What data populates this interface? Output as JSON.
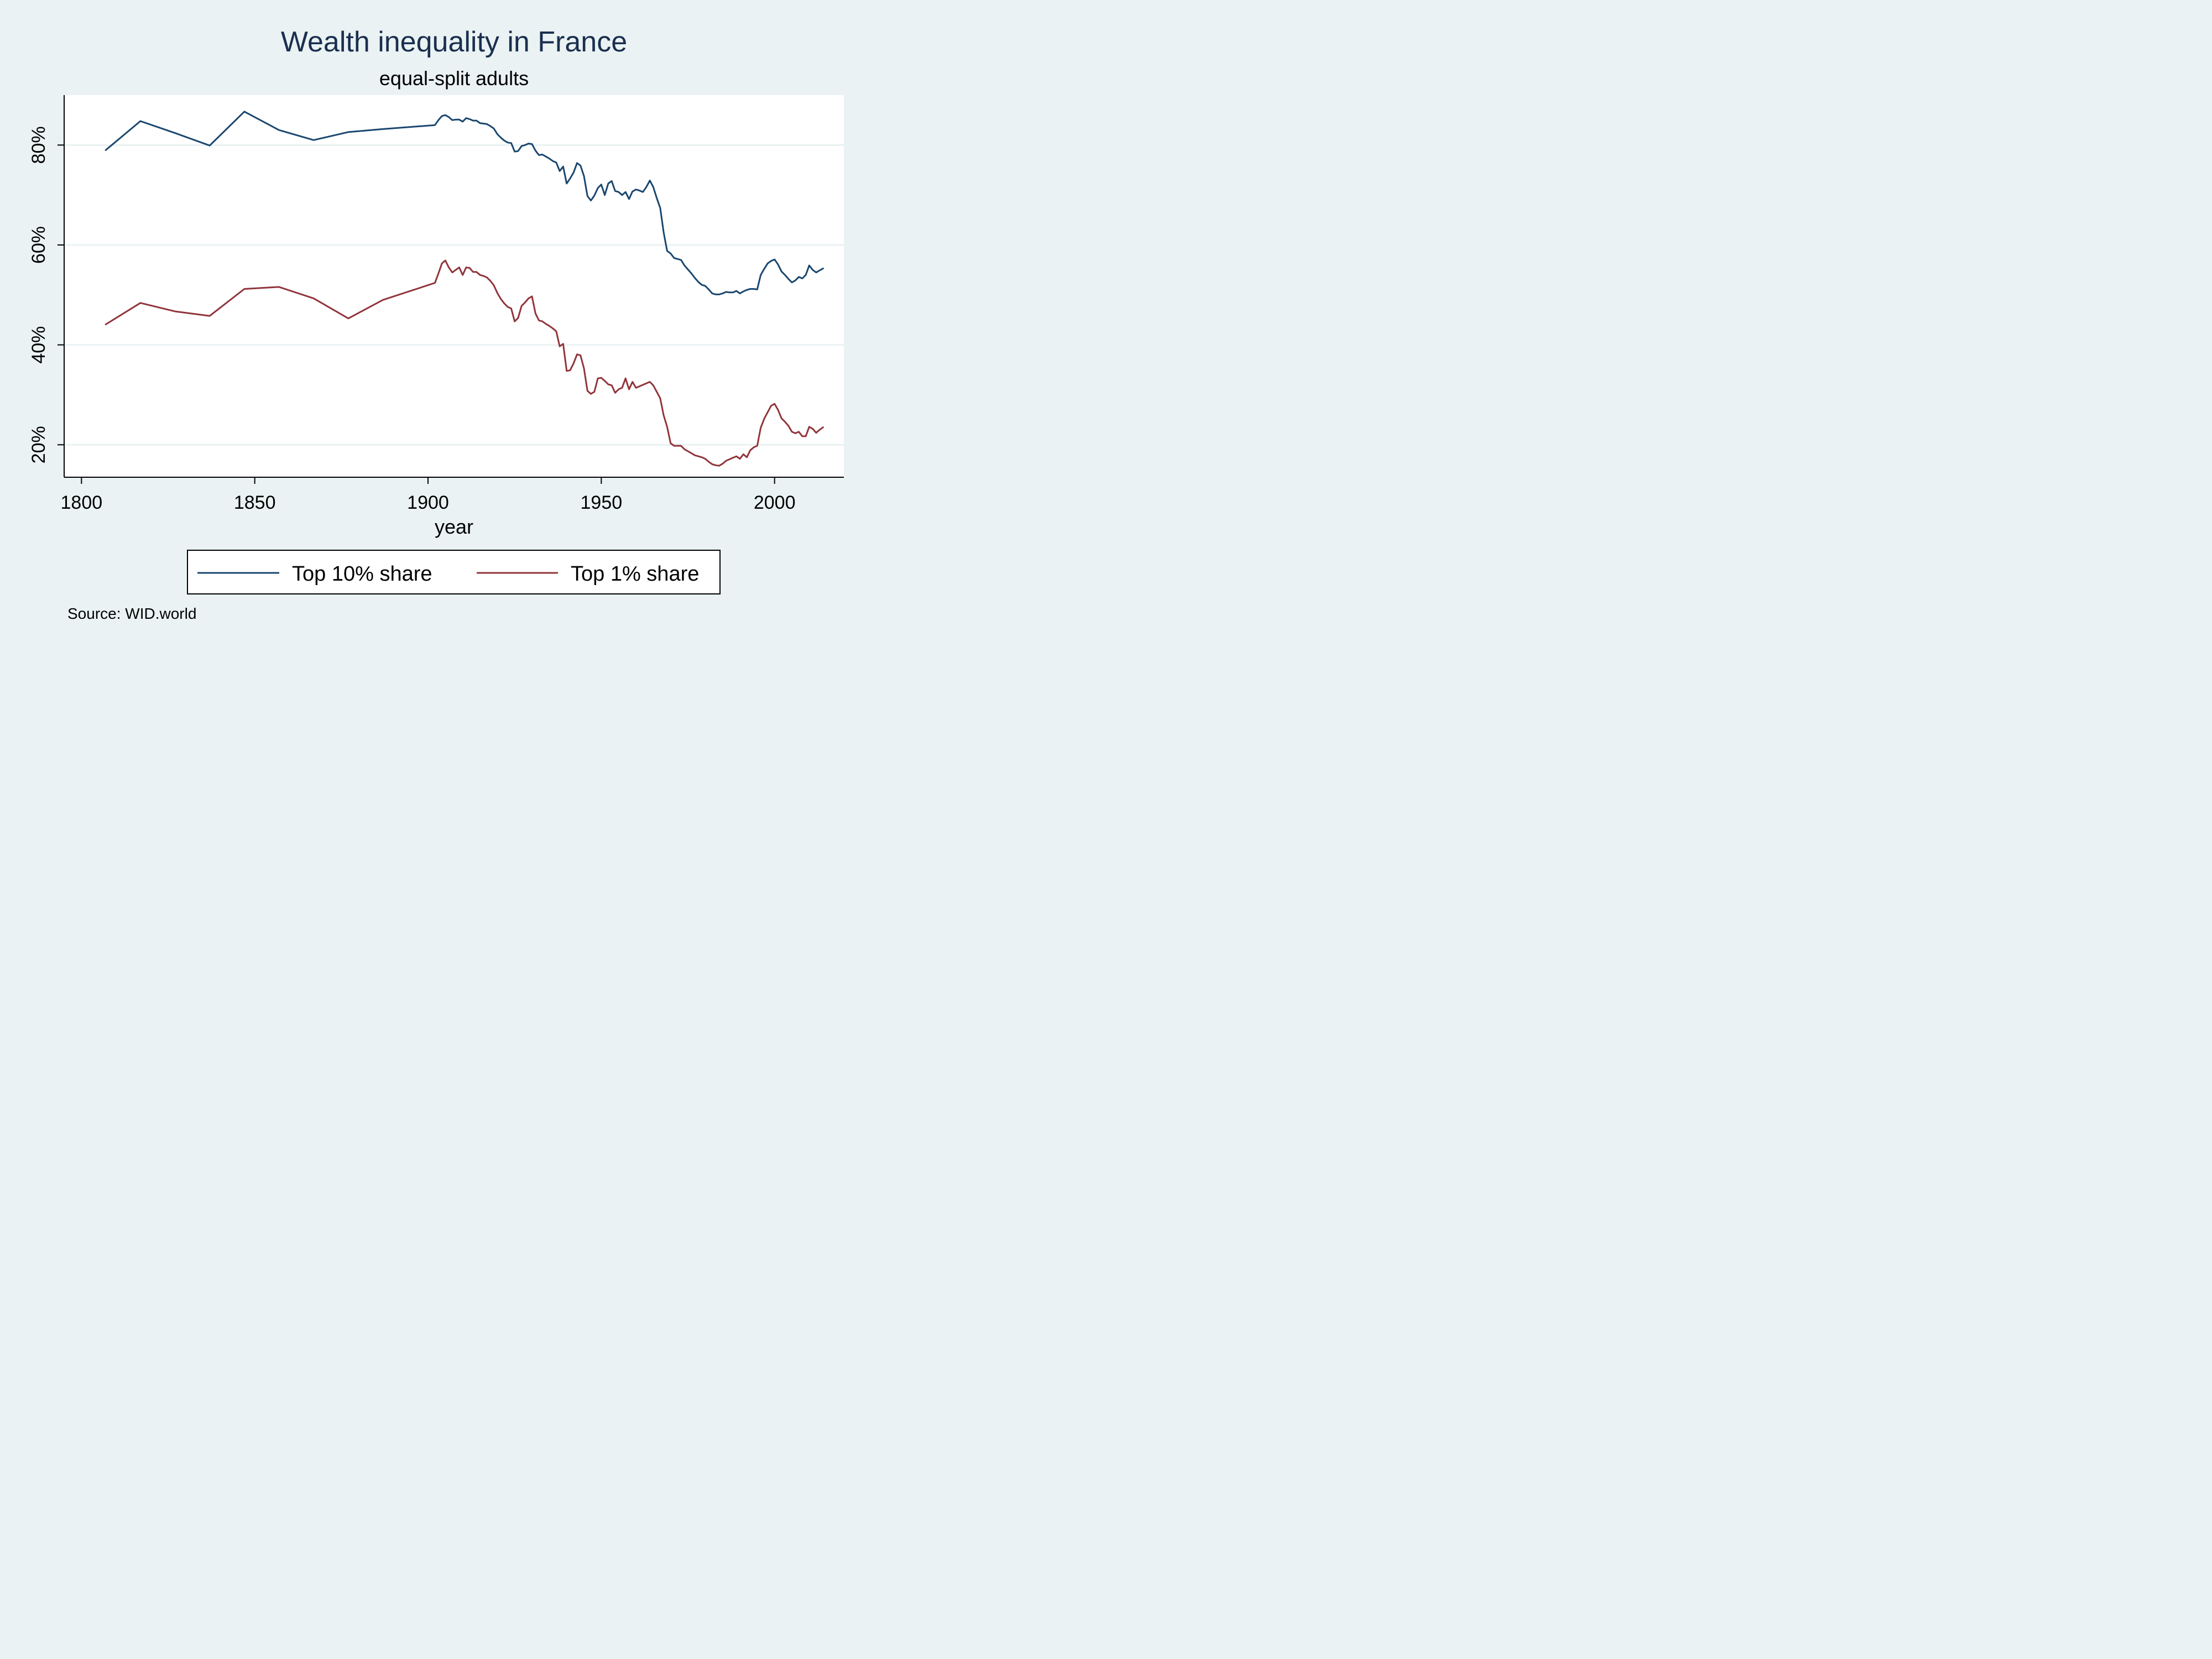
{
  "chart_data": {
    "type": "line",
    "title": "Wealth inequality in France",
    "subtitle": "equal-split adults",
    "xlabel": "year",
    "ylabel": "",
    "xlim": [
      1795,
      2020
    ],
    "ylim": [
      13.5,
      90
    ],
    "x_ticks": [
      1800,
      1850,
      1900,
      1950,
      2000
    ],
    "y_ticks": [
      20,
      40,
      60,
      80
    ],
    "y_tick_labels": [
      "20%",
      "40%",
      "60%",
      "80%"
    ],
    "grid": "horizontal",
    "legend_position": "bottom",
    "note": "Source: WID.world",
    "series": [
      {
        "name": "Top 10% share",
        "color": "#1a476f",
        "x": [
          1807,
          1817,
          1827,
          1837,
          1847,
          1857,
          1867,
          1877,
          1887,
          1902,
          1903,
          1904,
          1905,
          1906,
          1907,
          1908,
          1909,
          1910,
          1911,
          1912,
          1913,
          1914,
          1915,
          1916,
          1917,
          1918,
          1919,
          1920,
          1921,
          1922,
          1923,
          1924,
          1925,
          1926,
          1927,
          1928,
          1929,
          1930,
          1931,
          1932,
          1933,
          1934,
          1935,
          1936,
          1937,
          1938,
          1939,
          1940,
          1941,
          1942,
          1943,
          1944,
          1945,
          1946,
          1947,
          1948,
          1949,
          1950,
          1951,
          1952,
          1953,
          1954,
          1955,
          1956,
          1957,
          1958,
          1959,
          1960,
          1961,
          1962,
          1963,
          1964,
          1965,
          1966,
          1967,
          1968,
          1969,
          1970,
          1971,
          1972,
          1973,
          1974,
          1975,
          1976,
          1977,
          1978,
          1979,
          1980,
          1981,
          1982,
          1983,
          1984,
          1985,
          1986,
          1987,
          1988,
          1989,
          1990,
          1991,
          1992,
          1993,
          1994,
          1995,
          1996,
          1997,
          1998,
          1999,
          2000,
          2001,
          2002,
          2003,
          2004,
          2005,
          2006,
          2007,
          2008,
          2009,
          2010,
          2011,
          2012,
          2013,
          2014
        ],
        "values": [
          79.0,
          84.8,
          82.4,
          79.9,
          86.7,
          83.0,
          81.0,
          82.6,
          83.2,
          84.0,
          85.0,
          85.8,
          86.0,
          85.6,
          85.0,
          85.1,
          85.1,
          84.7,
          85.4,
          85.2,
          84.9,
          84.9,
          84.4,
          84.3,
          84.2,
          83.8,
          83.3,
          82.2,
          81.5,
          80.9,
          80.5,
          80.4,
          78.7,
          78.8,
          79.8,
          80.0,
          80.3,
          80.2,
          78.9,
          78.0,
          78.1,
          77.7,
          77.3,
          76.8,
          76.5,
          74.8,
          75.7,
          72.3,
          73.3,
          74.5,
          76.4,
          75.9,
          73.8,
          69.8,
          68.9,
          69.9,
          71.4,
          72.1,
          70.0,
          72.3,
          72.8,
          70.8,
          70.6,
          70.0,
          70.6,
          69.2,
          70.7,
          71.1,
          70.9,
          70.6,
          71.6,
          72.9,
          71.6,
          69.4,
          67.4,
          62.5,
          58.8,
          58.3,
          57.4,
          57.2,
          57.0,
          55.9,
          55.1,
          54.3,
          53.4,
          52.6,
          52.0,
          51.8,
          51.1,
          50.3,
          50.1,
          50.1,
          50.3,
          50.6,
          50.5,
          50.5,
          50.8,
          50.3,
          50.7,
          51.0,
          51.2,
          51.2,
          51.1,
          54.0,
          55.2,
          56.3,
          56.8,
          57.1,
          56.1,
          54.7,
          54.0,
          53.2,
          52.5,
          52.9,
          53.6,
          53.3,
          54.0,
          55.9,
          55.0,
          54.5,
          54.9,
          55.3
        ]
      },
      {
        "name": "Top 1% share",
        "color": "#90353b",
        "x": [
          1807,
          1817,
          1827,
          1837,
          1847,
          1857,
          1867,
          1877,
          1887,
          1902,
          1903,
          1904,
          1905,
          1906,
          1907,
          1908,
          1909,
          1910,
          1911,
          1912,
          1913,
          1914,
          1915,
          1916,
          1917,
          1918,
          1919,
          1920,
          1921,
          1922,
          1923,
          1924,
          1925,
          1926,
          1927,
          1928,
          1929,
          1930,
          1931,
          1932,
          1933,
          1934,
          1935,
          1936,
          1937,
          1938,
          1939,
          1940,
          1941,
          1942,
          1943,
          1944,
          1945,
          1946,
          1947,
          1948,
          1949,
          1950,
          1951,
          1952,
          1953,
          1954,
          1955,
          1956,
          1957,
          1958,
          1959,
          1960,
          1961,
          1962,
          1963,
          1964,
          1965,
          1966,
          1967,
          1968,
          1969,
          1970,
          1971,
          1972,
          1973,
          1974,
          1975,
          1976,
          1977,
          1978,
          1979,
          1980,
          1981,
          1982,
          1983,
          1984,
          1985,
          1986,
          1987,
          1988,
          1989,
          1990,
          1991,
          1992,
          1993,
          1994,
          1995,
          1996,
          1997,
          1998,
          1999,
          2000,
          2001,
          2002,
          2003,
          2004,
          2005,
          2006,
          2007,
          2008,
          2009,
          2010,
          2011,
          2012,
          2013,
          2014
        ],
        "values": [
          44.1,
          48.4,
          46.7,
          45.8,
          51.2,
          51.6,
          49.3,
          45.3,
          49.0,
          52.4,
          54.3,
          56.3,
          56.9,
          55.5,
          54.5,
          55.0,
          55.5,
          54.0,
          55.5,
          55.4,
          54.6,
          54.6,
          54.0,
          53.8,
          53.5,
          52.8,
          51.9,
          50.4,
          49.2,
          48.3,
          47.6,
          47.3,
          44.7,
          45.4,
          47.8,
          48.5,
          49.3,
          49.7,
          46.3,
          44.9,
          44.7,
          44.2,
          43.8,
          43.3,
          42.7,
          39.7,
          40.2,
          34.8,
          34.9,
          36.3,
          38.1,
          37.9,
          35.3,
          30.8,
          30.2,
          30.6,
          33.3,
          33.4,
          32.8,
          32.1,
          31.9,
          30.4,
          31.1,
          31.4,
          33.3,
          31.1,
          32.6,
          31.4,
          31.7,
          32.0,
          32.3,
          32.6,
          31.9,
          30.6,
          29.3,
          25.9,
          23.6,
          20.3,
          19.8,
          19.8,
          19.8,
          19.1,
          18.7,
          18.3,
          17.9,
          17.7,
          17.5,
          17.2,
          16.6,
          16.1,
          15.9,
          15.8,
          16.2,
          16.8,
          17.1,
          17.4,
          17.7,
          17.2,
          18.1,
          17.5,
          18.9,
          19.5,
          19.8,
          23.4,
          25.2,
          26.5,
          27.8,
          28.2,
          27.0,
          25.3,
          24.6,
          23.8,
          22.6,
          22.3,
          22.6,
          21.7,
          21.7,
          23.6,
          23.2,
          22.4,
          23.0,
          23.5
        ]
      }
    ]
  }
}
